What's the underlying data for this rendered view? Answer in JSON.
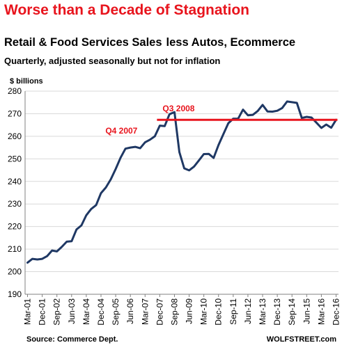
{
  "header": {
    "headline": "Worse than a Decade of Stagnation",
    "title_part1": "Retail & Food Services Sales",
    "title_part2": "less Autos, Ecommerce",
    "subtitle": "Quarterly, adjusted seasonally but not for inflation"
  },
  "footer": {
    "source": "Source: Commerce Dept.",
    "watermark": "WOLFSTREET.com"
  },
  "colors": {
    "line": "#1f3864",
    "reference": "#e8141d",
    "headline": "#e8141d",
    "grid": "#d9d9d9"
  },
  "chart_data": {
    "type": "line",
    "title": "Retail & Food Services Sales less Autos, Ecommerce",
    "subtitle": "Quarterly, adjusted seasonally but not for inflation",
    "ylabel": "$ billions",
    "xlabel": "",
    "ylim": [
      190,
      280
    ],
    "yticks": [
      190,
      200,
      210,
      220,
      230,
      240,
      250,
      260,
      270,
      280
    ],
    "grid": "horizontal",
    "x_tick_labels": [
      "Mar-01",
      "Dec-01",
      "Sep-02",
      "Jun-03",
      "Mar-04",
      "Dec-04",
      "Sep-05",
      "Jun-06",
      "Mar-07",
      "Dec-07",
      "Sep-08",
      "Jun-09",
      "Mar-10",
      "Dec-10",
      "Sep-11",
      "Jun-12",
      "Mar-13",
      "Dec-13",
      "Sep-14",
      "Jun-15",
      "Mar-16",
      "Dec-16"
    ],
    "series": [
      {
        "name": "",
        "x": [
          "Mar-01",
          "Jun-01",
          "Sep-01",
          "Dec-01",
          "Mar-02",
          "Jun-02",
          "Sep-02",
          "Dec-02",
          "Mar-03",
          "Jun-03",
          "Sep-03",
          "Dec-03",
          "Mar-04",
          "Jun-04",
          "Sep-04",
          "Dec-04",
          "Mar-05",
          "Jun-05",
          "Sep-05",
          "Dec-05",
          "Mar-06",
          "Jun-06",
          "Sep-06",
          "Dec-06",
          "Mar-07",
          "Jun-07",
          "Sep-07",
          "Dec-07",
          "Mar-08",
          "Jun-08",
          "Sep-08",
          "Dec-08",
          "Mar-09",
          "Jun-09",
          "Sep-09",
          "Dec-09",
          "Mar-10",
          "Jun-10",
          "Sep-10",
          "Dec-10",
          "Mar-11",
          "Jun-11",
          "Sep-11",
          "Dec-11",
          "Mar-12",
          "Jun-12",
          "Sep-12",
          "Dec-12",
          "Mar-13",
          "Jun-13",
          "Sep-13",
          "Dec-13",
          "Mar-14",
          "Jun-14",
          "Sep-14",
          "Dec-14",
          "Mar-15",
          "Jun-15",
          "Sep-15",
          "Dec-15",
          "Mar-16",
          "Jun-16",
          "Sep-16",
          "Dec-16"
        ],
        "values": [
          204,
          205.7,
          205.4,
          205.7,
          206.9,
          209.4,
          209,
          211,
          213.3,
          213.5,
          218.7,
          220.5,
          225,
          227.8,
          229.5,
          234.8,
          237.3,
          240.9,
          245.5,
          250.5,
          254.5,
          255,
          255.3,
          254.7,
          257.3,
          258.5,
          260,
          264.7,
          264.5,
          269.8,
          270.7,
          253,
          245.8,
          244.9,
          246.6,
          249.3,
          252.1,
          252.2,
          250.4,
          256.1,
          261,
          265.8,
          267.8,
          267.8,
          271.8,
          269.3,
          269.5,
          271.2,
          273.9,
          271,
          270.9,
          271.3,
          272.5,
          275.4,
          275.1,
          274.8,
          268.1,
          268.6,
          268.3,
          266,
          263.7,
          265.2,
          263.8,
          267.3
        ]
      }
    ],
    "reference_line": {
      "value": 267.3,
      "from": "Dec-07",
      "to": "Dec-16"
    },
    "annotations": [
      {
        "text": "Q3 2008",
        "at": "Sep-08"
      },
      {
        "text": "Q4 2007",
        "at": "Dec-07"
      }
    ]
  }
}
